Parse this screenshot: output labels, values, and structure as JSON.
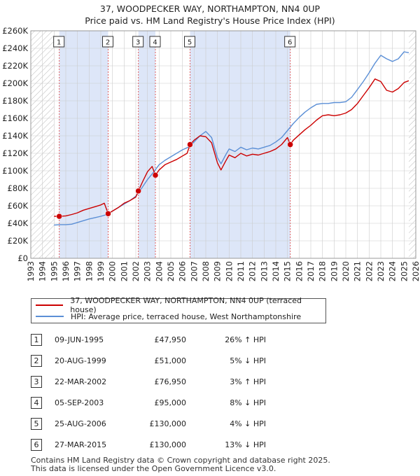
{
  "title_line1": "37, WOODPECKER WAY, NORTHAMPTON, NN4 0UP",
  "title_line2": "Price paid vs. HM Land Registry's House Price Index (HPI)",
  "colors": {
    "property": "#cc0000",
    "hpi": "#5b8fd6",
    "shade": "#dde6f8",
    "marker_line": "#e06060",
    "grid": "#cccccc"
  },
  "legend": {
    "property_label": "37, WOODPECKER WAY, NORTHAMPTON, NN4 0UP (terraced house)",
    "hpi_label": "HPI: Average price, terraced house, West Northamptonshire"
  },
  "chart_data": {
    "type": "line",
    "title": "37, WOODPECKER WAY, NORTHAMPTON, NN4 0UP — Price paid vs. HM Land Registry's House Price Index (HPI)",
    "xlim": [
      1993,
      2026
    ],
    "ylim": [
      0,
      260000
    ],
    "x_ticks": [
      1993,
      1994,
      1995,
      1996,
      1997,
      1998,
      1999,
      2000,
      2001,
      2002,
      2003,
      2004,
      2005,
      2006,
      2007,
      2008,
      2009,
      2010,
      2011,
      2012,
      2013,
      2014,
      2015,
      2016,
      2017,
      2018,
      2019,
      2020,
      2021,
      2022,
      2023,
      2024,
      2025,
      2026
    ],
    "y_ticks": [
      {
        "value": 0,
        "label": "£0"
      },
      {
        "value": 20000,
        "label": "£20K"
      },
      {
        "value": 40000,
        "label": "£40K"
      },
      {
        "value": 60000,
        "label": "£60K"
      },
      {
        "value": 80000,
        "label": "£80K"
      },
      {
        "value": 100000,
        "label": "£100K"
      },
      {
        "value": 120000,
        "label": "£120K"
      },
      {
        "value": 140000,
        "label": "£140K"
      },
      {
        "value": 160000,
        "label": "£160K"
      },
      {
        "value": 180000,
        "label": "£180K"
      },
      {
        "value": 200000,
        "label": "£200K"
      },
      {
        "value": 220000,
        "label": "£220K"
      },
      {
        "value": 240000,
        "label": "£240K"
      },
      {
        "value": 260000,
        "label": "£260K"
      }
    ],
    "data_start": 1995.0,
    "data_end": 2025.4,
    "shaded_spans": [
      [
        1995.44,
        1999.63
      ],
      [
        2002.22,
        2003.68
      ],
      [
        2006.65,
        2015.24
      ]
    ],
    "series": [
      {
        "name": "HPI: Average price, terraced house, West Northamptonshire",
        "x": [
          1995.0,
          1995.5,
          1996.0,
          1996.5,
          1997.0,
          1997.5,
          1998.0,
          1998.5,
          1999.0,
          1999.5,
          2000.0,
          2000.5,
          2001.0,
          2001.5,
          2002.0,
          2002.5,
          2003.0,
          2003.5,
          2004.0,
          2004.5,
          2005.0,
          2005.5,
          2006.0,
          2006.5,
          2007.0,
          2007.5,
          2008.0,
          2008.5,
          2009.0,
          2009.3,
          2009.7,
          2010.0,
          2010.5,
          2011.0,
          2011.5,
          2012.0,
          2012.5,
          2013.0,
          2013.5,
          2014.0,
          2014.5,
          2015.0,
          2015.5,
          2016.0,
          2016.5,
          2017.0,
          2017.5,
          2018.0,
          2018.5,
          2019.0,
          2019.5,
          2020.0,
          2020.5,
          2021.0,
          2021.5,
          2022.0,
          2022.5,
          2023.0,
          2023.5,
          2024.0,
          2024.5,
          2025.0,
          2025.4
        ],
        "y": [
          38000,
          38500,
          38500,
          39000,
          41000,
          43000,
          45000,
          46500,
          48000,
          50000,
          54000,
          58000,
          62000,
          66000,
          71000,
          80000,
          90000,
          98000,
          107000,
          112000,
          116000,
          120000,
          124000,
          127000,
          133000,
          140000,
          145000,
          138000,
          115000,
          108000,
          118000,
          125000,
          122000,
          127000,
          124000,
          126000,
          125000,
          127000,
          129000,
          133000,
          138000,
          146000,
          154000,
          161000,
          167000,
          172000,
          176000,
          177000,
          177000,
          178000,
          178000,
          179000,
          184000,
          193000,
          202000,
          212000,
          223000,
          232000,
          228000,
          225000,
          228000,
          236000,
          235000
        ]
      },
      {
        "name": "37, WOODPECKER WAY, NORTHAMPTON, NN4 0UP (terraced house)",
        "x": [
          1995.0,
          1995.44,
          1996.0,
          1996.5,
          1997.0,
          1997.5,
          1998.0,
          1998.5,
          1999.0,
          1999.3,
          1999.63,
          2000.0,
          2000.5,
          2001.0,
          2001.5,
          2002.0,
          2002.22,
          2002.6,
          2003.0,
          2003.4,
          2003.68,
          2004.0,
          2004.5,
          2005.0,
          2005.5,
          2006.0,
          2006.4,
          2006.65,
          2007.0,
          2007.5,
          2008.0,
          2008.5,
          2009.0,
          2009.3,
          2009.7,
          2010.0,
          2010.5,
          2011.0,
          2011.5,
          2012.0,
          2012.5,
          2013.0,
          2013.5,
          2014.0,
          2014.5,
          2015.0,
          2015.24,
          2015.5,
          2016.0,
          2016.5,
          2017.0,
          2017.5,
          2018.0,
          2018.5,
          2019.0,
          2019.5,
          2020.0,
          2020.5,
          2021.0,
          2021.5,
          2022.0,
          2022.5,
          2023.0,
          2023.5,
          2024.0,
          2024.5,
          2025.0,
          2025.4
        ],
        "y": [
          48000,
          47950,
          48500,
          50000,
          52000,
          55000,
          57000,
          59000,
          61000,
          63000,
          51000,
          54000,
          58000,
          63000,
          66000,
          70000,
          76950,
          88000,
          99000,
          105000,
          95000,
          101000,
          107000,
          110000,
          113000,
          117000,
          120000,
          130000,
          135000,
          140000,
          139000,
          132000,
          109000,
          101000,
          111000,
          118000,
          115000,
          120000,
          117000,
          119000,
          118000,
          120000,
          122000,
          125000,
          130000,
          138000,
          130000,
          135000,
          141000,
          147000,
          152000,
          158000,
          163000,
          164000,
          163000,
          164000,
          166000,
          170000,
          177000,
          186000,
          195000,
          205000,
          202000,
          192000,
          190000,
          194000,
          201000,
          203000
        ]
      }
    ],
    "sales": [
      {
        "num": "1",
        "x": 1995.44,
        "y": 47950
      },
      {
        "num": "2",
        "x": 1999.63,
        "y": 51000
      },
      {
        "num": "3",
        "x": 2002.22,
        "y": 76950
      },
      {
        "num": "4",
        "x": 2003.68,
        "y": 95000
      },
      {
        "num": "5",
        "x": 2006.65,
        "y": 130000
      },
      {
        "num": "6",
        "x": 2015.24,
        "y": 130000
      }
    ]
  },
  "transactions": [
    {
      "num": "1",
      "date": "09-JUN-1995",
      "price": "£47,950",
      "hpi": "26% ↑ HPI"
    },
    {
      "num": "2",
      "date": "20-AUG-1999",
      "price": "£51,000",
      "hpi": "5% ↓ HPI"
    },
    {
      "num": "3",
      "date": "22-MAR-2002",
      "price": "£76,950",
      "hpi": "3% ↑ HPI"
    },
    {
      "num": "4",
      "date": "05-SEP-2003",
      "price": "£95,000",
      "hpi": "8% ↓ HPI"
    },
    {
      "num": "5",
      "date": "25-AUG-2006",
      "price": "£130,000",
      "hpi": "4% ↓ HPI"
    },
    {
      "num": "6",
      "date": "27-MAR-2015",
      "price": "£130,000",
      "hpi": "13% ↓ HPI"
    }
  ],
  "footer_line1": "Contains HM Land Registry data © Crown copyright and database right 2025.",
  "footer_line2": "This data is licensed under the Open Government Licence v3.0."
}
